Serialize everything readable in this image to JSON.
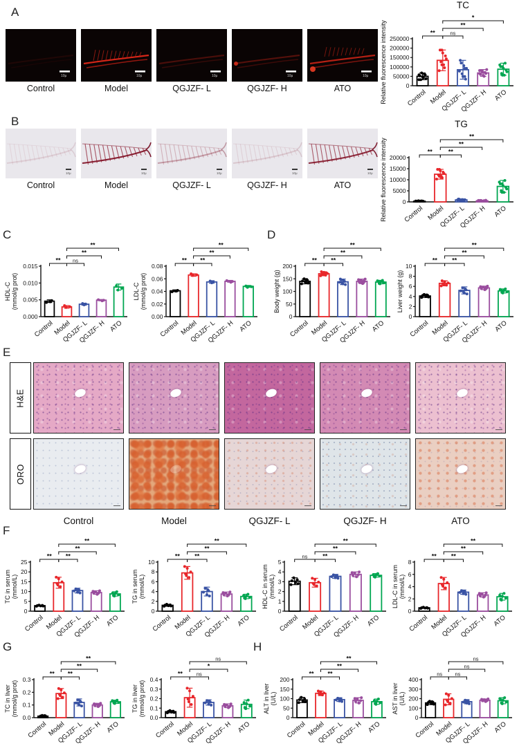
{
  "panels": {
    "a": "A",
    "b": "B",
    "c": "C",
    "d": "D",
    "e": "E",
    "f": "F",
    "g": "G",
    "h": "H",
    "e_rows": [
      "H&E",
      "ORO"
    ],
    "scale_bar": "10μ"
  },
  "groups": [
    "Control",
    "Model",
    "QGJZF- L",
    "QGJZF- H",
    "ATO"
  ],
  "group_colors": [
    "#000000",
    "#e8262a",
    "#3953a4",
    "#9a4d9e",
    "#00a651"
  ],
  "chart_data": [
    {
      "id": "tc_fluor",
      "type": "bar",
      "panel": "A",
      "title": "TC",
      "ylabel": [
        "Relative fluorescence intensity"
      ],
      "yticks": [
        "0",
        "50000",
        "100000",
        "150000",
        "200000",
        "250000"
      ],
      "ymax": 250000,
      "values": [
        50000,
        135000,
        85000,
        68000,
        88000
      ],
      "errors": [
        18000,
        55000,
        50000,
        18000,
        32000
      ],
      "np": 10,
      "sig": [
        {
          "a": 0,
          "b": 1,
          "l": "**",
          "lv": 0
        },
        {
          "a": 1,
          "b": 2,
          "l": "ns",
          "lv": 0
        },
        {
          "a": 1,
          "b": 3,
          "l": "**",
          "lv": 1
        },
        {
          "a": 1,
          "b": 4,
          "l": "*",
          "lv": 2
        }
      ]
    },
    {
      "id": "tg_fluor",
      "type": "bar",
      "panel": "B",
      "title": "TG",
      "ylabel": [
        "Relative fluorescence intensity"
      ],
      "yticks": [
        "0",
        "5000",
        "10000",
        "15000",
        "20000"
      ],
      "ymax": 20000,
      "values": [
        300,
        12500,
        900,
        500,
        7000
      ],
      "errors": [
        200,
        2200,
        400,
        250,
        2700
      ],
      "np": 10,
      "sig": [
        {
          "a": 0,
          "b": 1,
          "l": "**",
          "lv": 0
        },
        {
          "a": 1,
          "b": 2,
          "l": "**",
          "lv": 0
        },
        {
          "a": 1,
          "b": 3,
          "l": "**",
          "lv": 1
        },
        {
          "a": 1,
          "b": 4,
          "l": "**",
          "lv": 2
        }
      ]
    },
    {
      "id": "hdlc",
      "type": "bar",
      "panel": "C",
      "title": "",
      "ylabel": [
        "HDL-C",
        "(mmol/g prot)"
      ],
      "yticks": [
        "0.000",
        "0.005",
        "0.010",
        "0.015"
      ],
      "ymax": 0.015,
      "values": [
        0.0046,
        0.0029,
        0.0037,
        0.0049,
        0.0088
      ],
      "errors": [
        0.0004,
        0.0004,
        0.0003,
        0.0002,
        0.0009
      ],
      "np": 3,
      "sig": [
        {
          "a": 0,
          "b": 1,
          "l": "**",
          "lv": 0
        },
        {
          "a": 1,
          "b": 2,
          "l": "ns",
          "lv": 0
        },
        {
          "a": 1,
          "b": 3,
          "l": "**",
          "lv": 1
        },
        {
          "a": 1,
          "b": 4,
          "l": "**",
          "lv": 2
        }
      ]
    },
    {
      "id": "ldlc",
      "type": "bar",
      "panel": "C",
      "title": "",
      "ylabel": [
        "LDL-C",
        "(mmol/g prot)"
      ],
      "yticks": [
        "0.00",
        "0.02",
        "0.04",
        "0.06",
        "0.08"
      ],
      "ymax": 0.08,
      "values": [
        0.041,
        0.066,
        0.055,
        0.056,
        0.048
      ],
      "errors": [
        0.0015,
        0.002,
        0.002,
        0.0015,
        0.0015
      ],
      "np": 3,
      "sig": [
        {
          "a": 0,
          "b": 1,
          "l": "**",
          "lv": 0
        },
        {
          "a": 1,
          "b": 2,
          "l": "**",
          "lv": 0
        },
        {
          "a": 1,
          "b": 3,
          "l": "**",
          "lv": 1
        },
        {
          "a": 1,
          "b": 4,
          "l": "**",
          "lv": 2
        }
      ]
    },
    {
      "id": "bodyweight",
      "type": "bar",
      "panel": "D",
      "title": "",
      "ylabel": [
        "Body weight (g)"
      ],
      "yticks": [
        "0",
        "50",
        "100",
        "150",
        "200"
      ],
      "ymax": 200,
      "values": [
        140,
        170,
        138,
        140,
        137
      ],
      "errors": [
        10,
        8,
        11,
        9,
        7
      ],
      "np": 8,
      "sig": [
        {
          "a": 0,
          "b": 1,
          "l": "**",
          "lv": 0
        },
        {
          "a": 1,
          "b": 2,
          "l": "**",
          "lv": 0
        },
        {
          "a": 1,
          "b": 3,
          "l": "**",
          "lv": 1
        },
        {
          "a": 1,
          "b": 4,
          "l": "**",
          "lv": 2
        }
      ]
    },
    {
      "id": "liverweight",
      "type": "bar",
      "panel": "D",
      "title": "",
      "ylabel": [
        "Liver weight (g)"
      ],
      "yticks": [
        "0",
        "2",
        "4",
        "6",
        "8",
        "10"
      ],
      "ymax": 10,
      "values": [
        4.1,
        6.6,
        5.2,
        5.7,
        5.1
      ],
      "errors": [
        0.3,
        0.5,
        0.7,
        0.35,
        0.4
      ],
      "np": 7,
      "sig": [
        {
          "a": 0,
          "b": 1,
          "l": "**",
          "lv": 0
        },
        {
          "a": 1,
          "b": 2,
          "l": "**",
          "lv": 0
        },
        {
          "a": 1,
          "b": 3,
          "l": "**",
          "lv": 1
        },
        {
          "a": 1,
          "b": 4,
          "l": "**",
          "lv": 2
        }
      ]
    },
    {
      "id": "tc_serum",
      "type": "bar",
      "panel": "F",
      "title": "",
      "ylabel": [
        "TC in serum",
        "(mmol/L)"
      ],
      "yticks": [
        "0",
        "5",
        "10",
        "15",
        "20",
        "25"
      ],
      "ymax": 25,
      "values": [
        2.8,
        14.5,
        10.5,
        9.5,
        8.8
      ],
      "errors": [
        0.3,
        2.8,
        1.2,
        0.9,
        1.1
      ],
      "np": 6,
      "sig": [
        {
          "a": 0,
          "b": 1,
          "l": "**",
          "lv": 0
        },
        {
          "a": 1,
          "b": 2,
          "l": "**",
          "lv": 0
        },
        {
          "a": 1,
          "b": 3,
          "l": "**",
          "lv": 1
        },
        {
          "a": 1,
          "b": 4,
          "l": "**",
          "lv": 2
        }
      ]
    },
    {
      "id": "tg_serum",
      "type": "bar",
      "panel": "F",
      "title": "",
      "ylabel": [
        "TG in serum",
        "(mmol/L)"
      ],
      "yticks": [
        "0",
        "2",
        "4",
        "6",
        "8",
        "10"
      ],
      "ymax": 10,
      "values": [
        1.2,
        7.8,
        4,
        3.5,
        3
      ],
      "errors": [
        0.2,
        1.3,
        0.9,
        0.4,
        0.45
      ],
      "np": 6,
      "sig": [
        {
          "a": 0,
          "b": 1,
          "l": "**",
          "lv": 0
        },
        {
          "a": 1,
          "b": 2,
          "l": "**",
          "lv": 0
        },
        {
          "a": 1,
          "b": 3,
          "l": "**",
          "lv": 1
        },
        {
          "a": 1,
          "b": 4,
          "l": "**",
          "lv": 2
        }
      ]
    },
    {
      "id": "hdlc_serum",
      "type": "bar",
      "panel": "F",
      "title": "",
      "ylabel": [
        "HDL-C in serum",
        "(mmol/L)"
      ],
      "yticks": [
        "0",
        "1",
        "2",
        "3",
        "4",
        "5"
      ],
      "ymax": 5,
      "values": [
        3.05,
        2.9,
        3.55,
        3.75,
        3.65
      ],
      "errors": [
        0.35,
        0.45,
        0.2,
        0.25,
        0.18
      ],
      "np": 6,
      "sig": [
        {
          "a": 0,
          "b": 1,
          "l": "ns",
          "lv": 0
        },
        {
          "a": 1,
          "b": 2,
          "l": "**",
          "lv": 0
        },
        {
          "a": 1,
          "b": 3,
          "l": "**",
          "lv": 1
        },
        {
          "a": 1,
          "b": 4,
          "l": "**",
          "lv": 2
        }
      ]
    },
    {
      "id": "ldlc_serum",
      "type": "bar",
      "panel": "F",
      "title": "",
      "ylabel": [
        "LDL-C in serum",
        "(mmol/L)"
      ],
      "yticks": [
        "0",
        "2",
        "4",
        "6",
        "8"
      ],
      "ymax": 8,
      "values": [
        0.55,
        4.5,
        3.1,
        2.65,
        2.35
      ],
      "errors": [
        0.1,
        1,
        0.35,
        0.35,
        0.55
      ],
      "np": 6,
      "sig": [
        {
          "a": 0,
          "b": 1,
          "l": "**",
          "lv": 0
        },
        {
          "a": 1,
          "b": 2,
          "l": "**",
          "lv": 0
        },
        {
          "a": 1,
          "b": 3,
          "l": "**",
          "lv": 1
        },
        {
          "a": 1,
          "b": 4,
          "l": "**",
          "lv": 2
        }
      ]
    },
    {
      "id": "tc_liver",
      "type": "bar",
      "panel": "G",
      "title": "",
      "ylabel": [
        "TC in liver",
        "(mmol/g prot)"
      ],
      "yticks": [
        "0.0",
        "0.1",
        "0.2",
        "0.3"
      ],
      "ymax": 0.3,
      "values": [
        0.012,
        0.19,
        0.12,
        0.1,
        0.125
      ],
      "errors": [
        0.006,
        0.04,
        0.028,
        0.013,
        0.013
      ],
      "np": 7,
      "sig": [
        {
          "a": 0,
          "b": 1,
          "l": "**",
          "lv": 0
        },
        {
          "a": 1,
          "b": 2,
          "l": "**",
          "lv": 0
        },
        {
          "a": 1,
          "b": 3,
          "l": "**",
          "lv": 1
        },
        {
          "a": 1,
          "b": 4,
          "l": "**",
          "lv": 2
        }
      ]
    },
    {
      "id": "tg_liver",
      "type": "bar",
      "panel": "G",
      "title": "",
      "ylabel": [
        "TG in liver",
        "(mmol/g prot)"
      ],
      "yticks": [
        "0.0",
        "0.1",
        "0.2",
        "0.3",
        "0.4"
      ],
      "ymax": 0.4,
      "values": [
        0.063,
        0.21,
        0.16,
        0.125,
        0.14
      ],
      "errors": [
        0.012,
        0.1,
        0.028,
        0.02,
        0.045
      ],
      "np": 6,
      "sig": [
        {
          "a": 0,
          "b": 1,
          "l": "**",
          "lv": 0
        },
        {
          "a": 1,
          "b": 2,
          "l": "ns",
          "lv": 0
        },
        {
          "a": 1,
          "b": 3,
          "l": "*",
          "lv": 1
        },
        {
          "a": 1,
          "b": 4,
          "l": "ns",
          "lv": 2
        }
      ]
    },
    {
      "id": "alt_liver",
      "type": "bar",
      "panel": "H",
      "title": "",
      "ylabel": [
        "ALT in liver",
        "(U/L)"
      ],
      "yticks": [
        "0",
        "50",
        "100",
        "150",
        "200"
      ],
      "ymax": 200,
      "values": [
        93,
        128,
        95,
        91,
        84
      ],
      "errors": [
        14,
        12,
        10,
        14,
        14
      ],
      "np": 6,
      "sig": [
        {
          "a": 0,
          "b": 1,
          "l": "**",
          "lv": 0
        },
        {
          "a": 1,
          "b": 2,
          "l": "**",
          "lv": 0
        },
        {
          "a": 1,
          "b": 3,
          "l": "**",
          "lv": 1
        },
        {
          "a": 1,
          "b": 4,
          "l": "**",
          "lv": 2
        }
      ]
    },
    {
      "id": "ast_liver",
      "type": "bar",
      "panel": "H",
      "title": "",
      "ylabel": [
        "AST in liver",
        "(U/L)"
      ],
      "yticks": [
        "0",
        "100",
        "200",
        "300",
        "400"
      ],
      "ymax": 400,
      "values": [
        155,
        193,
        168,
        183,
        178
      ],
      "errors": [
        18,
        58,
        22,
        14,
        32
      ],
      "np": 7,
      "sig": [
        {
          "a": 0,
          "b": 1,
          "l": "ns",
          "lv": 0
        },
        {
          "a": 1,
          "b": 2,
          "l": "ns",
          "lv": 0
        },
        {
          "a": 1,
          "b": 3,
          "l": "ns",
          "lv": 1
        },
        {
          "a": 1,
          "b": 4,
          "l": "ns",
          "lv": 2
        }
      ]
    }
  ]
}
